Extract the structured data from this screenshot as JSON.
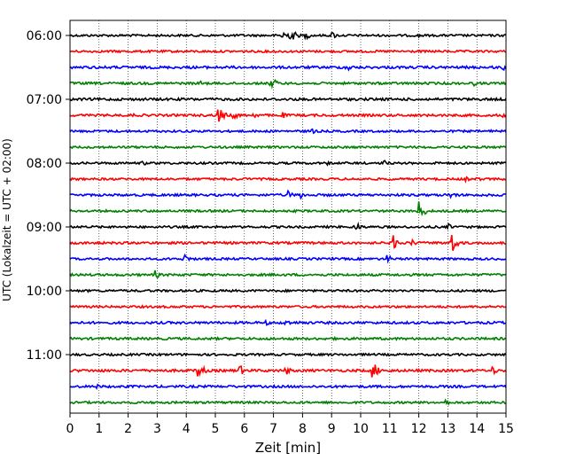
{
  "chart_data": {
    "type": "line",
    "xlabel": "Zeit  [min]",
    "ylabel": "UTC (Lokalzeit = UTC + 02:00)",
    "xlim": [
      0,
      15
    ],
    "x_ticks": [
      0,
      1,
      2,
      3,
      4,
      5,
      6,
      7,
      8,
      9,
      10,
      11,
      12,
      13,
      14,
      15
    ],
    "y_tick_labels": [
      "06:00",
      "07:00",
      "08:00",
      "09:00",
      "10:00",
      "11:00"
    ],
    "grid": "vertical dotted",
    "trace_colors": [
      "#000000",
      "#ff0000",
      "#0000ff",
      "#008000"
    ],
    "rows": [
      {
        "start": "06:00",
        "color": "#000000",
        "base": 1.2,
        "events": [
          {
            "x": 7.3,
            "amp": 11
          },
          {
            "x": 7.6,
            "amp": 9
          },
          {
            "x": 8.1,
            "amp": 5
          },
          {
            "x": 9.0,
            "amp": 5
          },
          {
            "x": 12.0,
            "amp": 3
          }
        ]
      },
      {
        "start": "06:15",
        "color": "#ff0000",
        "base": 1.2,
        "events": [
          {
            "x": 3.0,
            "amp": 2
          },
          {
            "x": 7.0,
            "amp": 2
          }
        ]
      },
      {
        "start": "06:30",
        "color": "#0000ff",
        "base": 1.4,
        "events": [
          {
            "x": 9.5,
            "amp": 6
          },
          {
            "x": 14.9,
            "amp": 5
          }
        ]
      },
      {
        "start": "06:45",
        "color": "#008000",
        "base": 1.3,
        "events": [
          {
            "x": 4.5,
            "amp": 3
          },
          {
            "x": 6.9,
            "amp": 9
          },
          {
            "x": 13.9,
            "amp": 3
          }
        ]
      },
      {
        "start": "07:00",
        "color": "#000000",
        "base": 1.4,
        "events": [
          {
            "x": 10.5,
            "amp": 2
          }
        ]
      },
      {
        "start": "07:15",
        "color": "#ff0000",
        "base": 1.3,
        "events": [
          {
            "x": 2.2,
            "amp": 3
          },
          {
            "x": 5.1,
            "amp": 11
          },
          {
            "x": 5.6,
            "amp": 6
          },
          {
            "x": 6.3,
            "amp": 4
          },
          {
            "x": 7.3,
            "amp": 4
          },
          {
            "x": 14.8,
            "amp": 4
          }
        ]
      },
      {
        "start": "07:30",
        "color": "#0000ff",
        "base": 1.2,
        "events": [
          {
            "x": 8.3,
            "amp": 4
          },
          {
            "x": 14.5,
            "amp": 2
          }
        ]
      },
      {
        "start": "07:45",
        "color": "#008000",
        "base": 1.2,
        "events": [
          {
            "x": 1.5,
            "amp": 2
          },
          {
            "x": 14.8,
            "amp": 2
          }
        ]
      },
      {
        "start": "08:00",
        "color": "#000000",
        "base": 1.2,
        "events": [
          {
            "x": 2.5,
            "amp": 3
          },
          {
            "x": 8.8,
            "amp": 3
          },
          {
            "x": 10.8,
            "amp": 4
          },
          {
            "x": 12.5,
            "amp": 3
          }
        ]
      },
      {
        "start": "08:15",
        "color": "#ff0000",
        "base": 1.2,
        "events": [
          {
            "x": 6.0,
            "amp": 2
          },
          {
            "x": 13.6,
            "amp": 3
          },
          {
            "x": 14.0,
            "amp": 3
          }
        ]
      },
      {
        "start": "08:30",
        "color": "#0000ff",
        "base": 1.3,
        "events": [
          {
            "x": 7.5,
            "amp": 5
          },
          {
            "x": 7.9,
            "amp": 5
          },
          {
            "x": 13.1,
            "amp": 5
          }
        ]
      },
      {
        "start": "08:45",
        "color": "#008000",
        "base": 1.2,
        "events": [
          {
            "x": 12.0,
            "amp": 12
          }
        ]
      },
      {
        "start": "09:00",
        "color": "#000000",
        "base": 1.2,
        "events": [
          {
            "x": 9.8,
            "amp": 7
          },
          {
            "x": 13.0,
            "amp": 4
          }
        ]
      },
      {
        "start": "09:15",
        "color": "#ff0000",
        "base": 1.3,
        "events": [
          {
            "x": 11.1,
            "amp": 10
          },
          {
            "x": 11.7,
            "amp": 6
          },
          {
            "x": 13.1,
            "amp": 15
          }
        ]
      },
      {
        "start": "09:30",
        "color": "#0000ff",
        "base": 1.2,
        "events": [
          {
            "x": 3.9,
            "amp": 7
          },
          {
            "x": 10.9,
            "amp": 5
          }
        ]
      },
      {
        "start": "09:45",
        "color": "#008000",
        "base": 1.3,
        "events": [
          {
            "x": 2.9,
            "amp": 6
          },
          {
            "x": 3.7,
            "amp": 2
          }
        ]
      },
      {
        "start": "10:00",
        "color": "#000000",
        "base": 1.2,
        "events": [
          {
            "x": 12.5,
            "amp": 2
          }
        ]
      },
      {
        "start": "10:15",
        "color": "#ff0000",
        "base": 1.2,
        "events": []
      },
      {
        "start": "10:30",
        "color": "#0000ff",
        "base": 1.3,
        "events": [
          {
            "x": 6.7,
            "amp": 4
          },
          {
            "x": 7.4,
            "amp": 5
          },
          {
            "x": 7.9,
            "amp": 3
          }
        ]
      },
      {
        "start": "10:45",
        "color": "#008000",
        "base": 1.3,
        "events": []
      },
      {
        "start": "11:00",
        "color": "#000000",
        "base": 1.2,
        "events": []
      },
      {
        "start": "11:15",
        "color": "#ff0000",
        "base": 1.4,
        "events": [
          {
            "x": 4.4,
            "amp": 11
          },
          {
            "x": 5.8,
            "amp": 8
          },
          {
            "x": 7.4,
            "amp": 6
          },
          {
            "x": 10.4,
            "amp": 12
          },
          {
            "x": 14.5,
            "amp": 6
          }
        ]
      },
      {
        "start": "11:30",
        "color": "#0000ff",
        "base": 1.3,
        "events": [
          {
            "x": 0.9,
            "amp": 3
          }
        ]
      },
      {
        "start": "11:45",
        "color": "#008000",
        "base": 1.2,
        "events": [
          {
            "x": 12.9,
            "amp": 4
          }
        ]
      }
    ]
  }
}
